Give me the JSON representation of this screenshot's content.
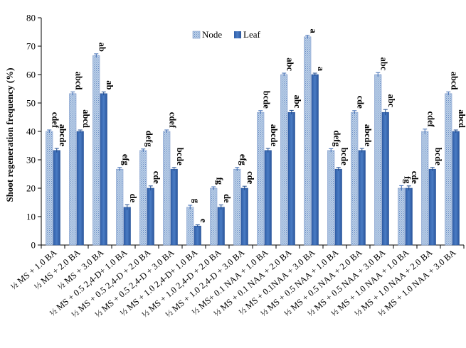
{
  "chart_data": {
    "type": "bar",
    "ylabel": "Shoot regeneration frequency (%)",
    "xlabel": "",
    "ylim": [
      0,
      80
    ],
    "yticks": [
      0,
      10,
      20,
      30,
      40,
      50,
      60,
      70,
      80
    ],
    "grid": false,
    "legend_position": "top-center",
    "categories": [
      "½ MS + 1.0 BA",
      "½ MS + 2.0 BA",
      "½ MS + 3.0 BA",
      "½ MS + 0.5 2,4-D+ 1.0 BA",
      "½ MS + 0.5 2,4-D + 2.0 BA",
      "½ MS + 0.5 2,4-D + 3.0 BA",
      "½ MS + 1.0 2,4-D+ 1.0 BA",
      "½ MS + 1.0 2,4-D + 2.0 BA",
      "½ MS + 1.0 2,4-D + 3.0 BA",
      "½ MS+ 0.1 NAA + 1.0 BA",
      "½ MS + 0.1 NAA + 2.0 BA",
      "½ MS + 0.1NAA + 3.0 BA",
      "½ MS + 0.5 NAA + 1.0 BA",
      "½ MS + 0.5 NAA + 2.0 BA",
      "½ MS + 0.5 NAA + 3.0 BA",
      "½ MS + 1.0 NAA + 1.0 BA",
      "½ MS + 1.0 NAA + 2.0 BA",
      "½ MS + 1.0 NAA + 3.0 BA"
    ],
    "series": [
      {
        "name": "Node",
        "color": "#a9bfdc",
        "values": [
          40,
          53.3,
          66.7,
          26.7,
          33.3,
          40,
          13.3,
          20,
          26.7,
          46.7,
          60,
          73.3,
          33.3,
          46.7,
          60,
          20,
          40,
          53.3
        ],
        "errors": [
          0.5,
          0.6,
          0.6,
          0.6,
          0.5,
          0.5,
          0.7,
          0.5,
          0.6,
          0.6,
          0.5,
          0.5,
          0.6,
          0.6,
          0.7,
          0.9,
          0.8,
          0.6
        ],
        "labels": [
          "cdef",
          "abcd",
          "ab",
          "efg",
          "defg",
          "cdef",
          "g",
          "fg",
          "efg",
          "bcde",
          "abc",
          "a",
          "defg",
          "cde",
          "abc",
          "fg",
          "cdef",
          "abcd"
        ]
      },
      {
        "name": "Leaf",
        "color": "#3a68b0",
        "values": [
          33.3,
          40,
          53.3,
          13.3,
          20,
          26.7,
          6.7,
          13.3,
          20,
          33.3,
          46.7,
          60,
          26.7,
          33.3,
          46.7,
          20,
          26.7,
          40
        ],
        "errors": [
          0.7,
          0.5,
          0.6,
          0.9,
          0.8,
          0.6,
          0.4,
          0.8,
          0.7,
          0.7,
          0.7,
          0.5,
          0.6,
          0.7,
          1.0,
          0.8,
          0.6,
          0.5
        ],
        "labels": [
          "abcde",
          "abcd",
          "ab",
          "de",
          "cde",
          "bcde",
          "e",
          "de",
          "cde",
          "abcde",
          "abc",
          "a",
          "bcde",
          "abcde",
          "abc",
          "cde",
          "bcde",
          "abcd"
        ]
      }
    ]
  }
}
